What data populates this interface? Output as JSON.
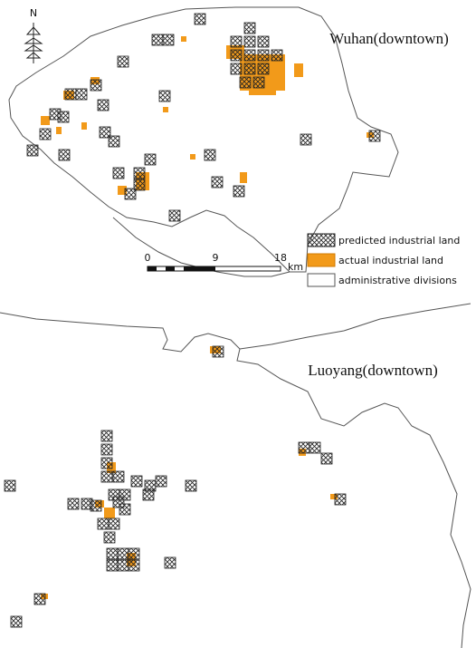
{
  "map": {
    "north": "N",
    "panels": [
      {
        "title": "Wuhan(downtown)"
      },
      {
        "title": "Luoyang(downtown)"
      }
    ],
    "legend": [
      "predicted industrial land",
      "actual industrial land",
      "administrative divisions"
    ],
    "scale_bar": {
      "ticks": [
        0,
        9,
        18
      ],
      "unit": "km"
    }
  }
}
